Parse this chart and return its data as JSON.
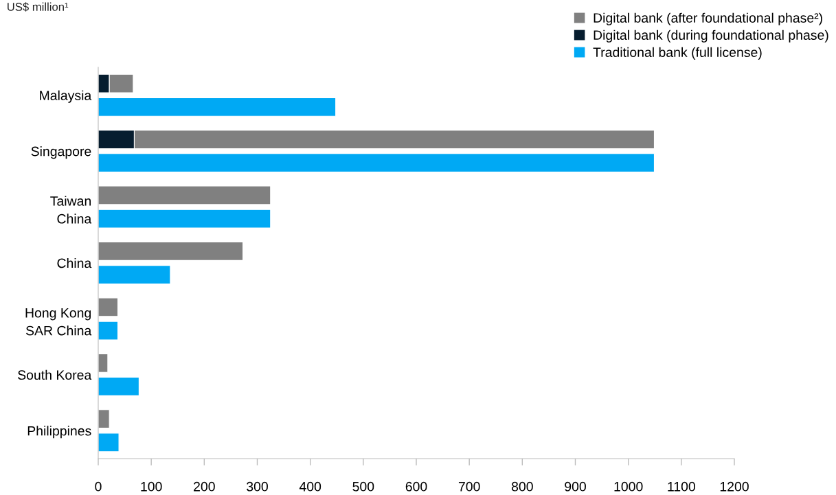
{
  "chart_data": {
    "type": "bar",
    "orientation": "horizontal",
    "title": "US$ million¹",
    "categories": [
      "Malaysia",
      "Singapore",
      "Taiwan\nChina",
      "China",
      "Hong Kong\nSAR China",
      "South Korea",
      "Philippines"
    ],
    "series": [
      {
        "name": "Digital bank (during foundational phase)",
        "color": "#061d2f",
        "values": [
          21,
          68,
          null,
          null,
          null,
          null,
          null
        ]
      },
      {
        "name": "Digital bank (after foundational phase²)",
        "color": "#808080",
        "base": [
          21,
          68,
          0,
          0,
          0,
          0,
          0
        ],
        "values": [
          45,
          981,
          325,
          273,
          37,
          18,
          21
        ]
      },
      {
        "name": "Traditional bank (full license)",
        "color": "#00a9f4",
        "values": [
          448,
          1049,
          325,
          136,
          37,
          77,
          39
        ]
      }
    ],
    "xlim": [
      0,
      1200
    ],
    "xticks": [
      0,
      100,
      200,
      300,
      400,
      500,
      600,
      700,
      800,
      900,
      1000,
      1100,
      1200
    ],
    "grid": false,
    "legend": "top right"
  }
}
